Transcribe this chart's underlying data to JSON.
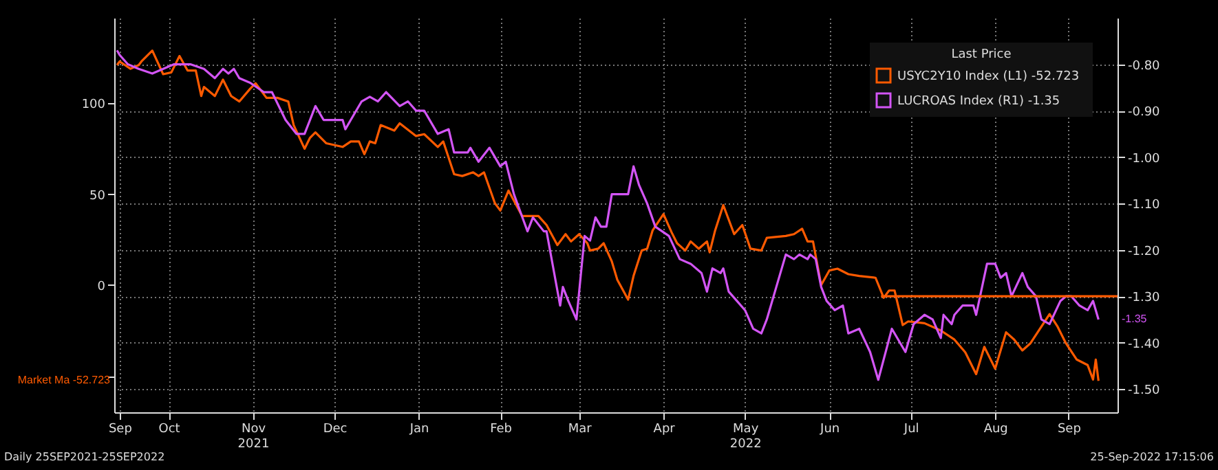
{
  "chart_data": {
    "type": "line",
    "legend_title": "Last Price",
    "xlim": [
      "2021-09-26",
      "2022-09-30"
    ],
    "xticks": [
      {
        "value": "2021-09-28",
        "label": "Sep"
      },
      {
        "value": "2021-10-16",
        "label": "Oct"
      },
      {
        "value": "2021-11-16",
        "label": "Nov\n2021"
      },
      {
        "value": "2021-12-16",
        "label": "Dec"
      },
      {
        "value": "2022-01-16",
        "label": "Jan"
      },
      {
        "value": "2022-02-15",
        "label": "Feb"
      },
      {
        "value": "2022-03-16",
        "label": "Mar"
      },
      {
        "value": "2022-04-16",
        "label": "Apr"
      },
      {
        "value": "2022-05-16",
        "label": "May\n2022"
      },
      {
        "value": "2022-06-16",
        "label": "Jun"
      },
      {
        "value": "2022-07-16",
        "label": "Jul"
      },
      {
        "value": "2022-08-16",
        "label": "Aug"
      },
      {
        "value": "2022-09-12",
        "label": "Sep"
      }
    ],
    "ylim": [
      -70,
      147
    ],
    "yticks": [
      100,
      50,
      0,
      {
        "value": -50,
        "label": null
      }
    ],
    "y2lim": [
      -1.55,
      -0.7
    ],
    "y2ticks": [
      {
        "value": -0.8,
        "label": "-0.80"
      },
      {
        "value": -0.9,
        "label": "-0.90"
      },
      {
        "value": -1.0,
        "label": "-1.00"
      },
      {
        "value": -1.1,
        "label": "-1.10"
      },
      {
        "value": -1.2,
        "label": "-1.20"
      },
      {
        "value": -1.3,
        "label": "-1.30"
      },
      {
        "value": -1.4,
        "label": "-1.40"
      },
      {
        "value": -1.5,
        "label": "-1.50"
      }
    ],
    "grid": true,
    "legend": "top right",
    "series": [
      {
        "name": "USYC2Y10 Index  (L1)  -52.723",
        "color": "#ff5a00",
        "x": [
          "2021-09-27",
          "2021-09-28",
          "2021-10-02",
          "2021-10-05",
          "2021-10-06",
          "2021-10-10",
          "2021-10-14",
          "2021-10-17",
          "2021-10-20",
          "2021-10-23",
          "2021-10-26",
          "2021-10-28",
          "2021-10-29",
          "2021-11-02",
          "2021-11-05",
          "2021-11-08",
          "2021-11-11",
          "2021-11-15",
          "2021-11-17",
          "2021-11-21",
          "2021-11-25",
          "2021-11-29",
          "2021-12-01",
          "2021-12-05",
          "2021-12-07",
          "2021-12-09",
          "2021-12-13",
          "2021-12-19",
          "2021-12-22",
          "2021-12-25",
          "2021-12-27",
          "2021-12-29",
          "2021-12-31",
          "2022-01-02",
          "2022-01-07",
          "2022-01-09",
          "2022-01-15",
          "2022-01-18",
          "2022-01-23",
          "2022-01-25",
          "2022-01-29",
          "2022-02-01",
          "2022-02-05",
          "2022-02-07",
          "2022-02-09",
          "2022-02-13",
          "2022-02-15",
          "2022-02-18",
          "2022-02-23",
          "2022-03-01",
          "2022-03-04",
          "2022-03-08",
          "2022-03-11",
          "2022-03-13",
          "2022-03-16",
          "2022-03-19",
          "2022-03-20",
          "2022-03-23",
          "2022-03-25",
          "2022-03-28",
          "2022-03-30",
          "2022-04-03",
          "2022-04-05",
          "2022-04-08",
          "2022-04-10",
          "2022-04-12",
          "2022-04-16",
          "2022-04-19",
          "2022-04-21",
          "2022-04-24",
          "2022-04-26",
          "2022-04-29",
          "2022-05-02",
          "2022-05-03",
          "2022-05-05",
          "2022-05-08",
          "2022-05-12",
          "2022-05-15",
          "2022-05-18",
          "2022-05-22",
          "2022-05-24",
          "2022-05-31",
          "2022-06-03",
          "2022-06-06",
          "2022-06-08",
          "2022-06-10",
          "2022-06-13",
          "2022-06-16",
          "2022-06-19",
          "2022-06-23",
          "2022-06-27",
          "2022-07-03",
          "2022-07-06",
          "2022-07-08",
          "2022-07-10",
          "2022-07-13",
          "2022-07-15",
          "2022-07-21",
          "2022-07-27",
          "2022-08-01",
          "2022-08-05",
          "2022-08-09",
          "2022-08-12",
          "2022-08-14",
          "2022-08-16",
          "2022-08-20",
          "2022-08-23",
          "2022-08-26",
          "2022-08-29",
          "2022-09-05",
          "2022-09-08",
          "2022-09-11",
          "2022-09-15",
          "2022-09-19",
          "2022-09-21",
          "2022-09-22",
          "2022-09-23"
        ],
        "values": [
          121,
          123,
          119,
          121,
          123,
          129,
          116,
          117,
          126,
          118,
          118,
          104,
          109,
          104,
          113,
          104,
          101,
          108,
          111,
          103,
          103,
          101,
          88,
          75,
          81,
          84,
          78,
          76,
          79,
          79,
          72,
          79,
          78,
          88,
          85,
          89,
          82,
          83,
          76,
          79,
          61,
          60,
          62,
          60,
          62,
          45,
          41,
          52,
          38,
          38,
          33,
          22,
          28,
          24,
          28,
          23,
          19,
          20,
          23,
          13,
          3,
          -8,
          5,
          19,
          20,
          30,
          39,
          29,
          23,
          19,
          24,
          20,
          24,
          18,
          30,
          44,
          28,
          33,
          20,
          19,
          26,
          27,
          28,
          31,
          24,
          24,
          0,
          8,
          9,
          6,
          5,
          4,
          -7,
          -3,
          -3,
          -22,
          -20,
          -21,
          -25,
          -30,
          -37,
          -49,
          -34,
          -40,
          -46,
          -26,
          -30,
          -36,
          -32,
          -16,
          -23,
          -32,
          -41,
          -44,
          -52,
          -41,
          -52.723
        ]
      },
      {
        "name": "LUCROAS Index  (R1)  -1.35",
        "color": "#d355f5",
        "axis": "y2",
        "x": [
          "2021-09-27",
          "2021-09-28",
          "2021-10-01",
          "2021-10-05",
          "2021-10-10",
          "2021-10-14",
          "2021-10-18",
          "2021-10-24",
          "2021-10-29",
          "2021-11-02",
          "2021-11-05",
          "2021-11-07",
          "2021-11-09",
          "2021-11-11",
          "2021-11-15",
          "2021-11-20",
          "2021-11-23",
          "2021-11-28",
          "2021-12-02",
          "2021-12-05",
          "2021-12-07",
          "2021-12-09",
          "2021-12-12",
          "2021-12-15",
          "2021-12-19",
          "2021-12-20",
          "2021-12-22",
          "2021-12-26",
          "2021-12-29",
          "2022-01-01",
          "2022-01-04",
          "2022-01-09",
          "2022-01-12",
          "2022-01-15",
          "2022-01-18",
          "2022-01-23",
          "2022-01-27",
          "2022-01-29",
          "2022-02-03",
          "2022-02-04",
          "2022-02-07",
          "2022-02-11",
          "2022-02-15",
          "2022-02-17",
          "2022-02-20",
          "2022-02-25",
          "2022-02-27",
          "2022-03-03",
          "2022-03-04",
          "2022-03-09",
          "2022-03-10",
          "2022-03-12",
          "2022-03-15",
          "2022-03-18",
          "2022-03-20",
          "2022-03-22",
          "2022-03-24",
          "2022-03-26",
          "2022-03-28",
          "2022-04-01",
          "2022-04-03",
          "2022-04-05",
          "2022-04-07",
          "2022-04-10",
          "2022-04-13",
          "2022-04-18",
          "2022-04-22",
          "2022-04-26",
          "2022-04-30",
          "2022-05-02",
          "2022-05-04",
          "2022-05-07",
          "2022-05-08",
          "2022-05-10",
          "2022-05-13",
          "2022-05-16",
          "2022-05-19",
          "2022-05-22",
          "2022-05-24",
          "2022-05-31",
          "2022-06-03",
          "2022-06-05",
          "2022-06-08",
          "2022-06-09",
          "2022-06-11",
          "2022-06-13",
          "2022-06-15",
          "2022-06-18",
          "2022-06-21",
          "2022-06-23",
          "2022-06-27",
          "2022-07-01",
          "2022-07-04",
          "2022-07-09",
          "2022-07-12",
          "2022-07-14",
          "2022-07-17",
          "2022-07-21",
          "2022-07-24",
          "2022-07-27",
          "2022-07-28",
          "2022-07-31",
          "2022-08-01",
          "2022-08-04",
          "2022-08-08",
          "2022-08-09",
          "2022-08-13",
          "2022-08-16",
          "2022-08-18",
          "2022-08-20",
          "2022-08-22",
          "2022-08-26",
          "2022-08-28",
          "2022-08-31",
          "2022-09-02",
          "2022-09-05",
          "2022-09-09",
          "2022-09-11",
          "2022-09-13",
          "2022-09-16",
          "2022-09-19",
          "2022-09-21",
          "2022-09-23"
        ],
        "values": [
          -0.77,
          -0.78,
          -0.8,
          -0.81,
          -0.82,
          -0.81,
          -0.8,
          -0.8,
          -0.81,
          -0.83,
          -0.81,
          -0.82,
          -0.81,
          -0.83,
          -0.84,
          -0.86,
          -0.86,
          -0.92,
          -0.95,
          -0.95,
          -0.92,
          -0.89,
          -0.92,
          -0.92,
          -0.92,
          -0.94,
          -0.92,
          -0.88,
          -0.87,
          -0.88,
          -0.86,
          -0.89,
          -0.88,
          -0.9,
          -0.9,
          -0.95,
          -0.94,
          -0.99,
          -0.99,
          -0.98,
          -1.01,
          -0.98,
          -1.02,
          -1.01,
          -1.08,
          -1.16,
          -1.13,
          -1.16,
          -1.16,
          -1.32,
          -1.28,
          -1.31,
          -1.35,
          -1.17,
          -1.18,
          -1.13,
          -1.15,
          -1.15,
          -1.08,
          -1.08,
          -1.08,
          -1.02,
          -1.06,
          -1.1,
          -1.15,
          -1.17,
          -1.22,
          -1.23,
          -1.25,
          -1.29,
          -1.24,
          -1.25,
          -1.24,
          -1.29,
          -1.31,
          -1.33,
          -1.37,
          -1.38,
          -1.35,
          -1.21,
          -1.22,
          -1.21,
          -1.22,
          -1.21,
          -1.22,
          -1.28,
          -1.31,
          -1.33,
          -1.32,
          -1.38,
          -1.37,
          -1.42,
          -1.48,
          -1.37,
          -1.4,
          -1.42,
          -1.36,
          -1.34,
          -1.35,
          -1.39,
          -1.34,
          -1.36,
          -1.34,
          -1.32,
          -1.32,
          -1.34,
          -1.23,
          -1.23,
          -1.26,
          -1.25,
          -1.3,
          -1.25,
          -1.28,
          -1.3,
          -1.35,
          -1.36,
          -1.31,
          -1.3,
          -1.3,
          -1.32,
          -1.33,
          -1.31,
          -1.35
        ]
      },
      {
        "type": "line",
        "color": "#ff5a00",
        "axis": "y2",
        "x": [
          "2022-07-05",
          "2022-09-30"
        ],
        "values": [
          -1.3,
          -1.3
        ]
      }
    ],
    "annotations": [
      "Market Ma -52.723",
      "-1.35",
      "Daily 25SEP2021-25SEP2022",
      "25-Sep-2022 17:15:06"
    ]
  }
}
